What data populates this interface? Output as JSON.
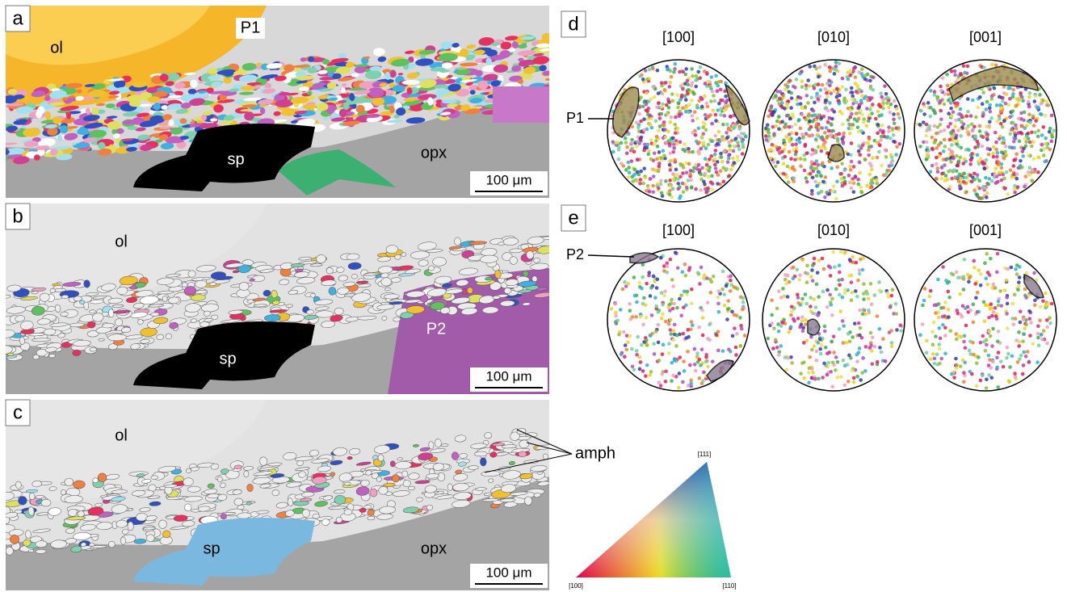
{
  "panels": [
    {
      "label": "a",
      "annotations": [
        "ol",
        "P1",
        "sp",
        "opx"
      ],
      "scale_bar": "100 μm"
    },
    {
      "label": "b",
      "annotations": [
        "ol",
        "sp",
        "P2"
      ],
      "scale_bar": "100 μm"
    },
    {
      "label": "c",
      "annotations": [
        "ol",
        "sp",
        "opx"
      ],
      "scale_bar": "100 μm",
      "callout": "amph"
    }
  ],
  "pole_figures": [
    {
      "label": "d",
      "titles": [
        "[100]",
        "[010]",
        "[001]"
      ],
      "callout": "P1"
    },
    {
      "label": "e",
      "titles": [
        "[100]",
        "[010]",
        "[001]"
      ],
      "callout": "P2"
    }
  ],
  "color_key": {
    "top": "[111]",
    "left": "[100]",
    "right": "[110]"
  }
}
